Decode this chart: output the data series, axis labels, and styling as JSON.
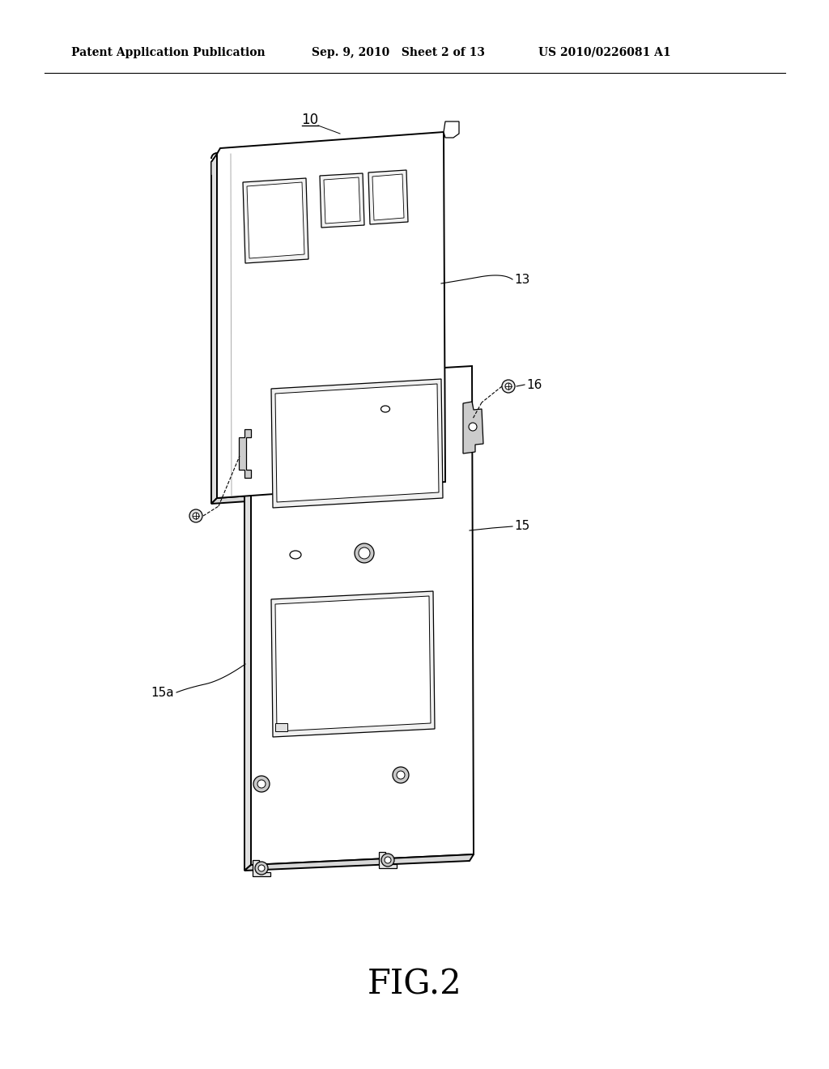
{
  "bg_color": "#ffffff",
  "line_color": "#000000",
  "header_left": "Patent Application Publication",
  "header_center": "Sep. 9, 2010   Sheet 2 of 13",
  "header_right": "US 2010/0226081 A1",
  "fig_label": "FIG.2",
  "label_10": "10",
  "label_13": "13",
  "label_15": "15",
  "label_15a": "15a",
  "label_16": "16"
}
